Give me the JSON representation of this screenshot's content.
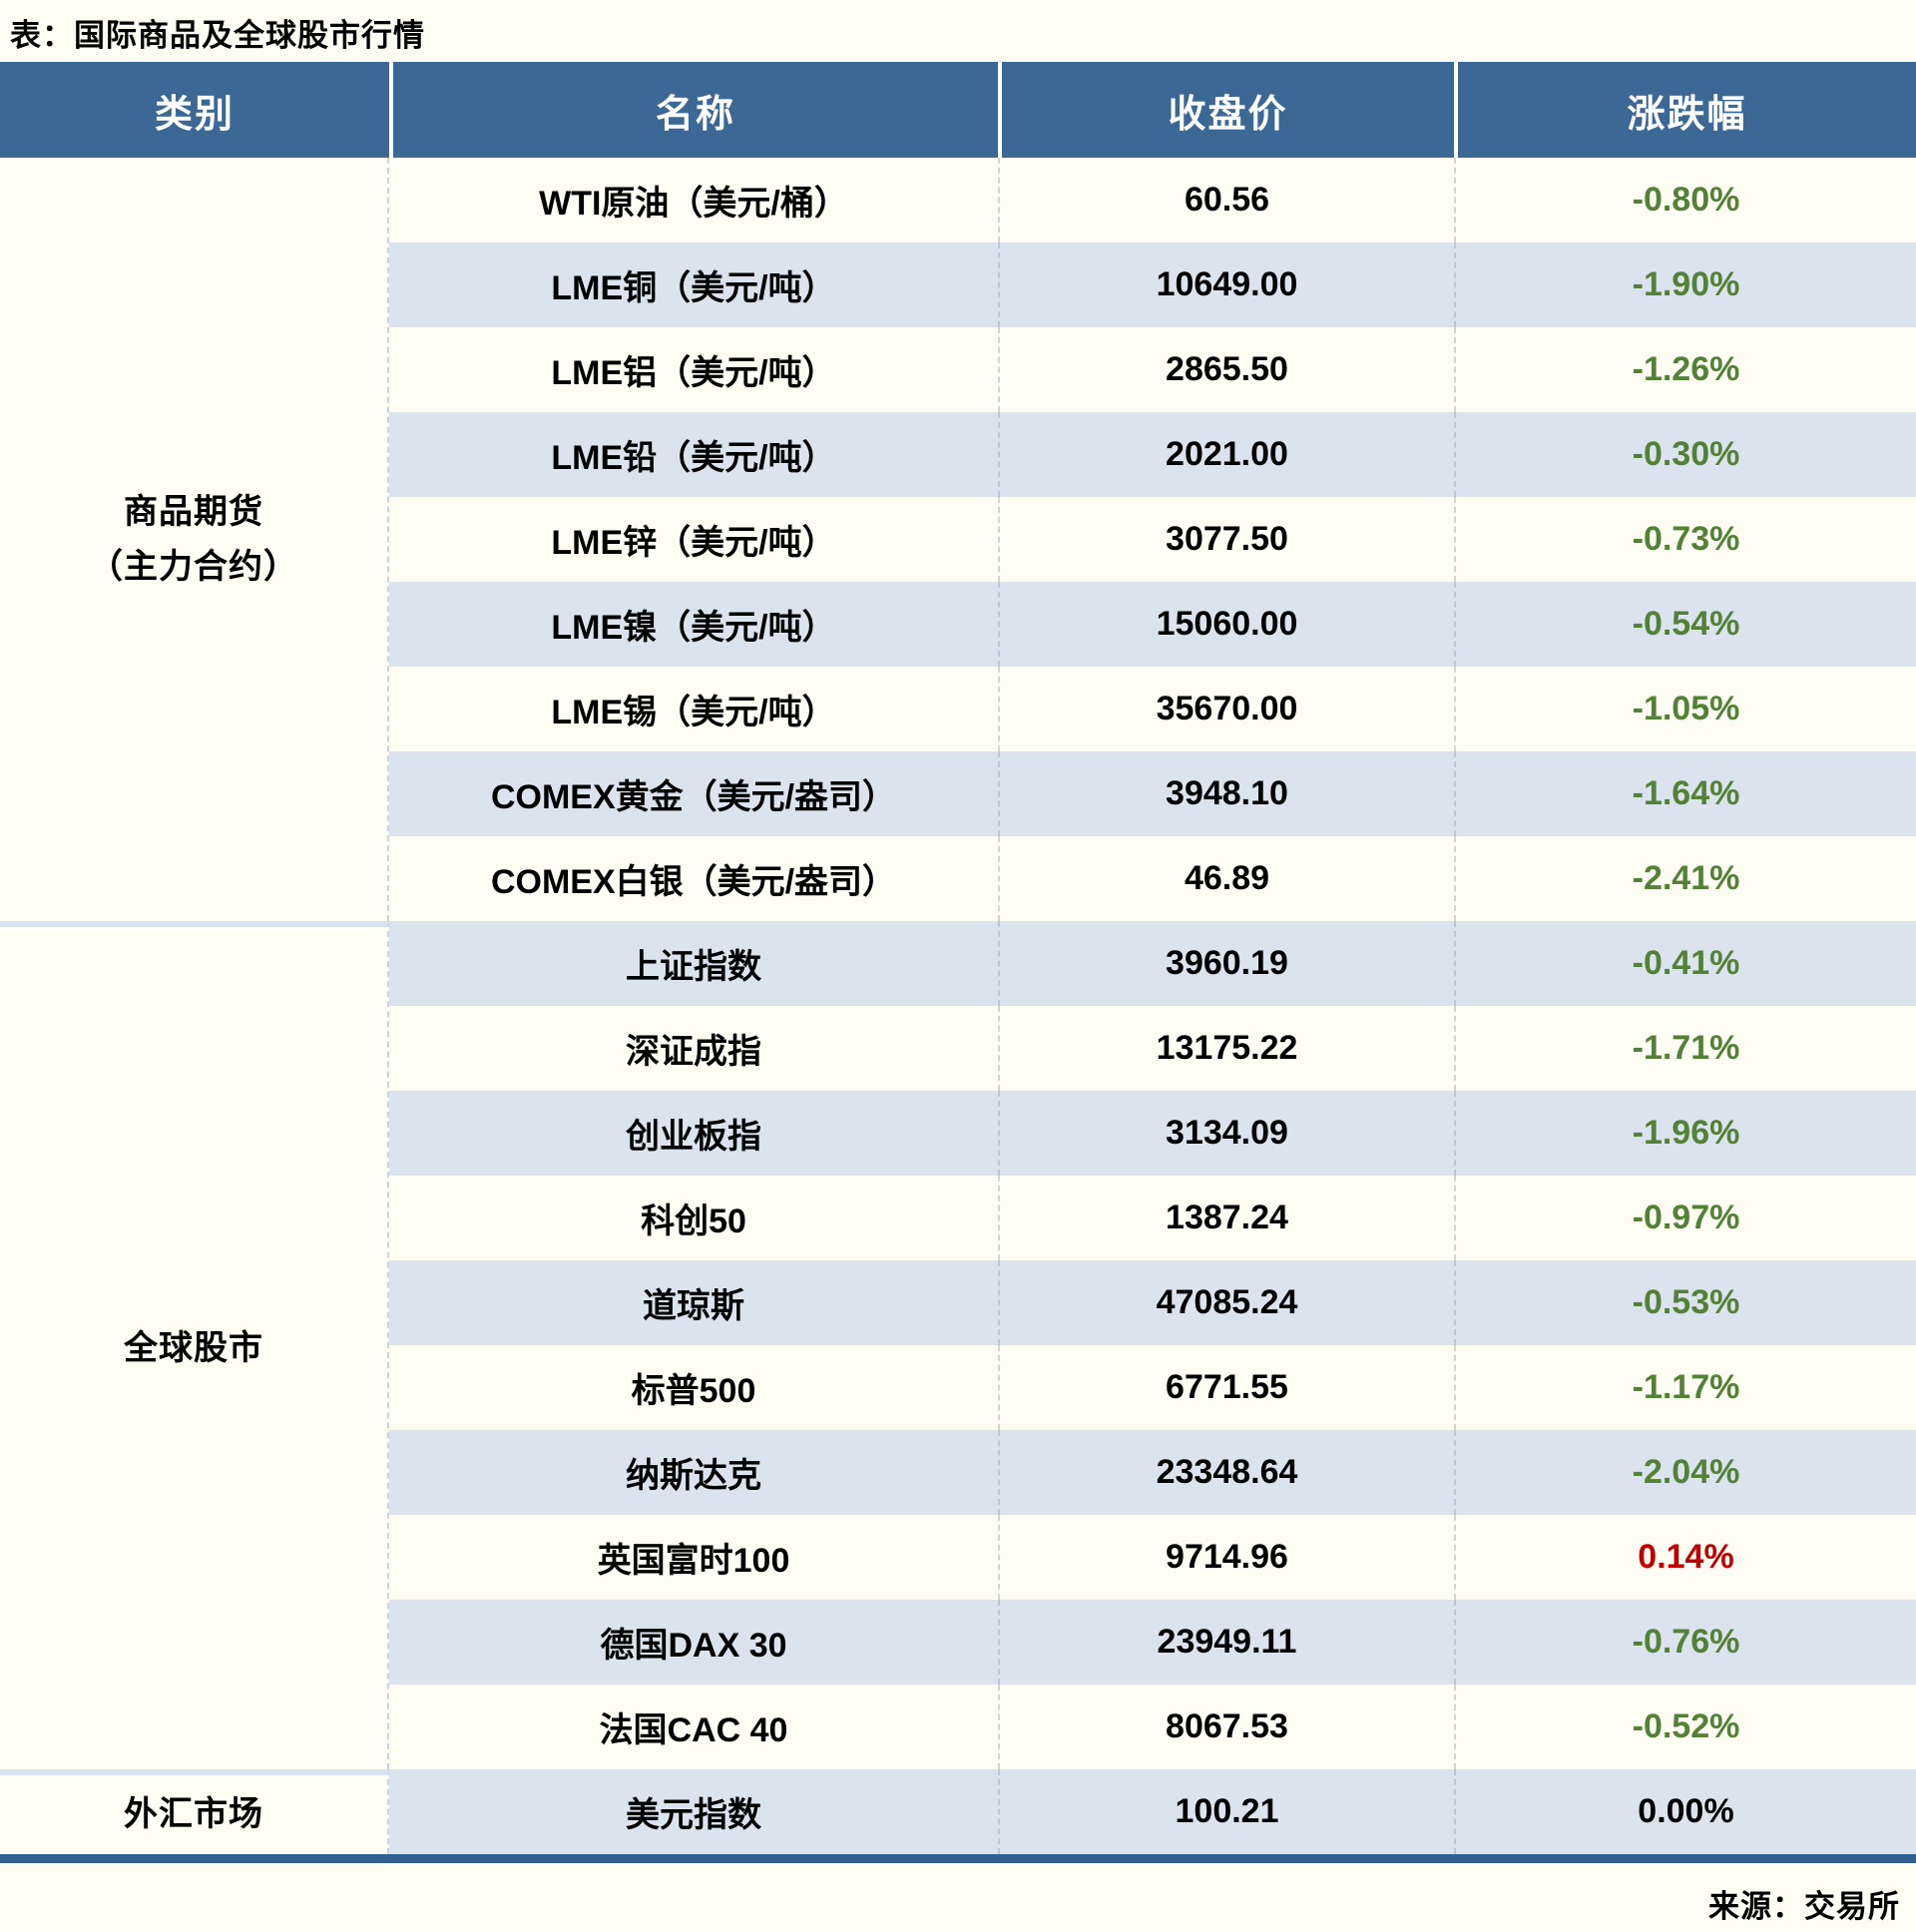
{
  "title": "表：国际商品及全球股市行情",
  "source": "来源：交易所",
  "colors": {
    "header_bg": "#3C6896",
    "stripe": "#DAE3EE",
    "page_bg": "#FDFDF3",
    "divider": "#D8E2F0",
    "bottom_bar": "#31618F",
    "negative": "#538135",
    "positive": "#C00000",
    "neutral": "#000000"
  },
  "table": {
    "headers": [
      "类别",
      "名称",
      "收盘价",
      "涨跌幅"
    ],
    "sections": [
      {
        "category": "商品期货\n（主力合约）",
        "rows": [
          {
            "name": "WTI原油（美元/桶）",
            "price": "60.56",
            "change": "-0.80%",
            "direction": "down"
          },
          {
            "name": "LME铜（美元/吨）",
            "price": "10649.00",
            "change": "-1.90%",
            "direction": "down"
          },
          {
            "name": "LME铝（美元/吨）",
            "price": "2865.50",
            "change": "-1.26%",
            "direction": "down"
          },
          {
            "name": "LME铅（美元/吨）",
            "price": "2021.00",
            "change": "-0.30%",
            "direction": "down"
          },
          {
            "name": "LME锌（美元/吨）",
            "price": "3077.50",
            "change": "-0.73%",
            "direction": "down"
          },
          {
            "name": "LME镍（美元/吨）",
            "price": "15060.00",
            "change": "-0.54%",
            "direction": "down"
          },
          {
            "name": "LME锡（美元/吨）",
            "price": "35670.00",
            "change": "-1.05%",
            "direction": "down"
          },
          {
            "name": "COMEX黄金（美元/盎司）",
            "price": "3948.10",
            "change": "-1.64%",
            "direction": "down"
          },
          {
            "name": "COMEX白银（美元/盎司）",
            "price": "46.89",
            "change": "-2.41%",
            "direction": "down"
          }
        ]
      },
      {
        "category": "全球股市",
        "rows": [
          {
            "name": "上证指数",
            "price": "3960.19",
            "change": "-0.41%",
            "direction": "down"
          },
          {
            "name": "深证成指",
            "price": "13175.22",
            "change": "-1.71%",
            "direction": "down"
          },
          {
            "name": "创业板指",
            "price": "3134.09",
            "change": "-1.96%",
            "direction": "down"
          },
          {
            "name": "科创50",
            "price": "1387.24",
            "change": "-0.97%",
            "direction": "down"
          },
          {
            "name": "道琼斯",
            "price": "47085.24",
            "change": "-0.53%",
            "direction": "down"
          },
          {
            "name": "标普500",
            "price": "6771.55",
            "change": "-1.17%",
            "direction": "down"
          },
          {
            "name": "纳斯达克",
            "price": "23348.64",
            "change": "-2.04%",
            "direction": "down"
          },
          {
            "name": "英国富时100",
            "price": "9714.96",
            "change": "0.14%",
            "direction": "up"
          },
          {
            "name": "德国DAX 30",
            "price": "23949.11",
            "change": "-0.76%",
            "direction": "down"
          },
          {
            "name": "法国CAC 40",
            "price": "8067.53",
            "change": "-0.52%",
            "direction": "down"
          }
        ]
      },
      {
        "category": "外汇市场",
        "rows": [
          {
            "name": "美元指数",
            "price": "100.21",
            "change": "0.00%",
            "direction": "flat"
          }
        ]
      }
    ]
  }
}
